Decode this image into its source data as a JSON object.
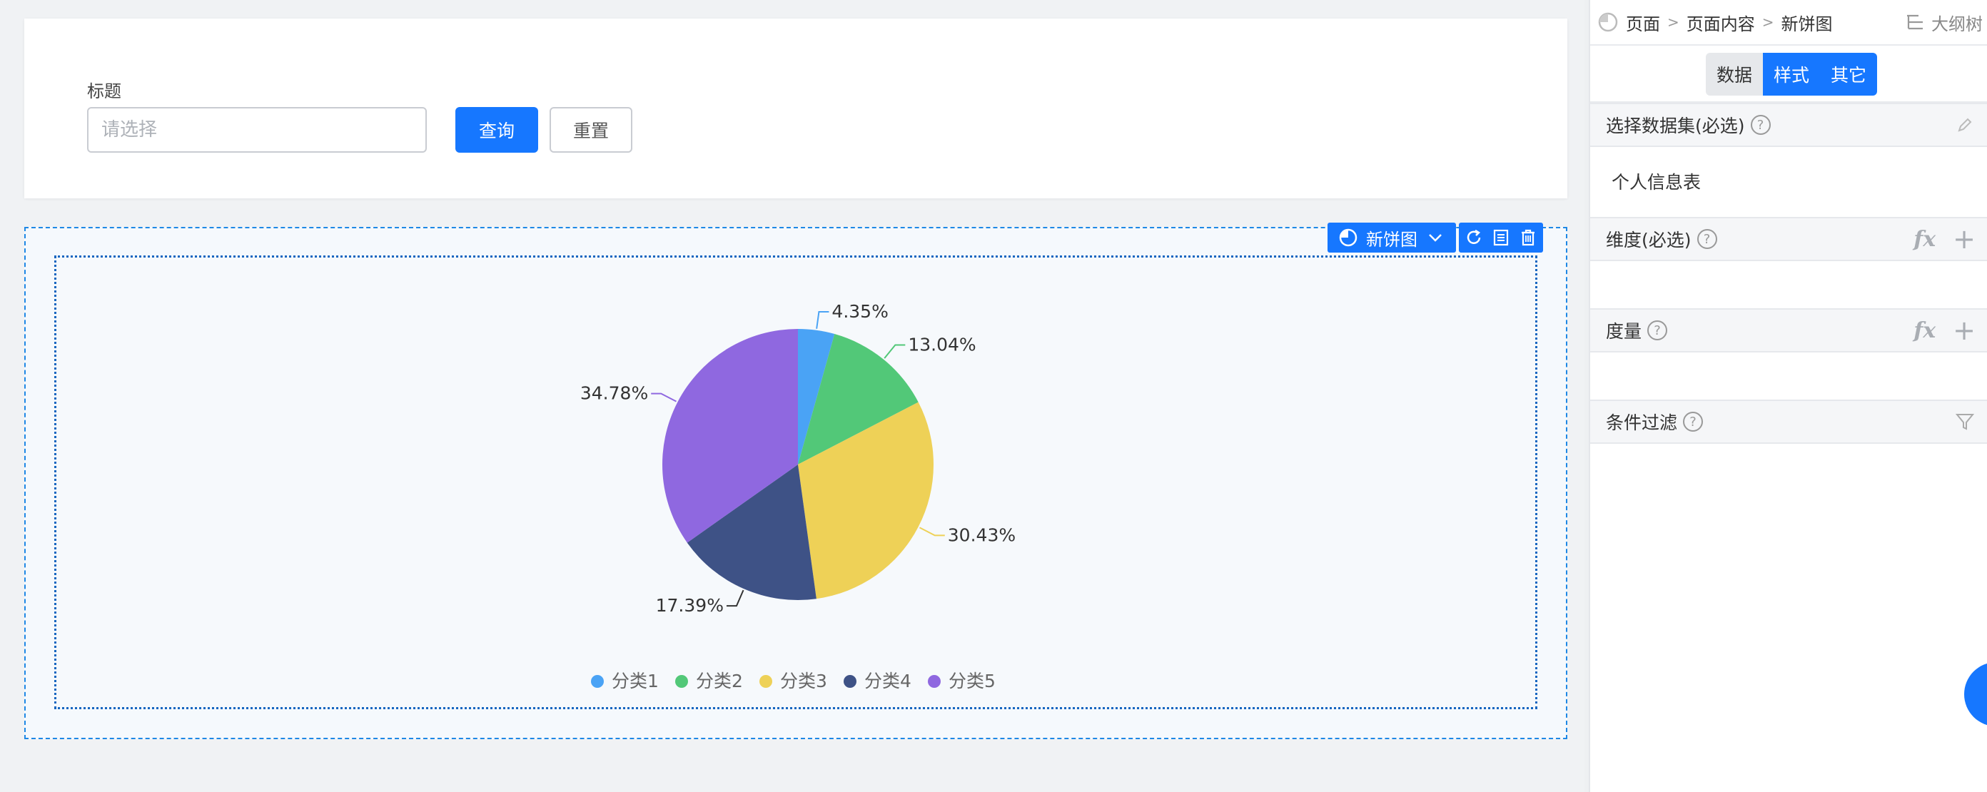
{
  "filter": {
    "label": "标题",
    "placeholder": "请选择",
    "query_label": "查询",
    "reset_label": "重置"
  },
  "component_toolbar": {
    "name": "新饼图",
    "icons": [
      "pie-chart-icon",
      "chevron-down-icon",
      "refresh-icon",
      "data-table-icon",
      "trash-icon"
    ]
  },
  "chart_data": {
    "type": "pie",
    "categories": [
      "分类1",
      "分类2",
      "分类3",
      "分类4",
      "分类5"
    ],
    "values": [
      4.35,
      13.04,
      30.43,
      17.39,
      34.78
    ],
    "labels": [
      "4.35%",
      "13.04%",
      "30.43%",
      "17.39%",
      "34.78%"
    ],
    "colors": [
      "#4aa3f5",
      "#52c878",
      "#eed157",
      "#3e5286",
      "#8f68e0"
    ],
    "legend_position": "bottom-center",
    "start_angle": "top, clockwise"
  },
  "panel": {
    "breadcrumb": [
      "页面",
      "页面内容",
      "新饼图"
    ],
    "outline_label": "大纲树",
    "tabs": [
      {
        "label": "数据",
        "active": false
      },
      {
        "label": "样式",
        "active": true
      },
      {
        "label": "其它",
        "active": true
      }
    ],
    "sections": {
      "dataset": {
        "title": "选择数据集(必选)",
        "value": "个人信息表"
      },
      "dimension": {
        "title": "维度(必选)"
      },
      "measure": {
        "title": "度量"
      },
      "filter": {
        "title": "条件过滤"
      }
    },
    "help_glyph": "?"
  }
}
